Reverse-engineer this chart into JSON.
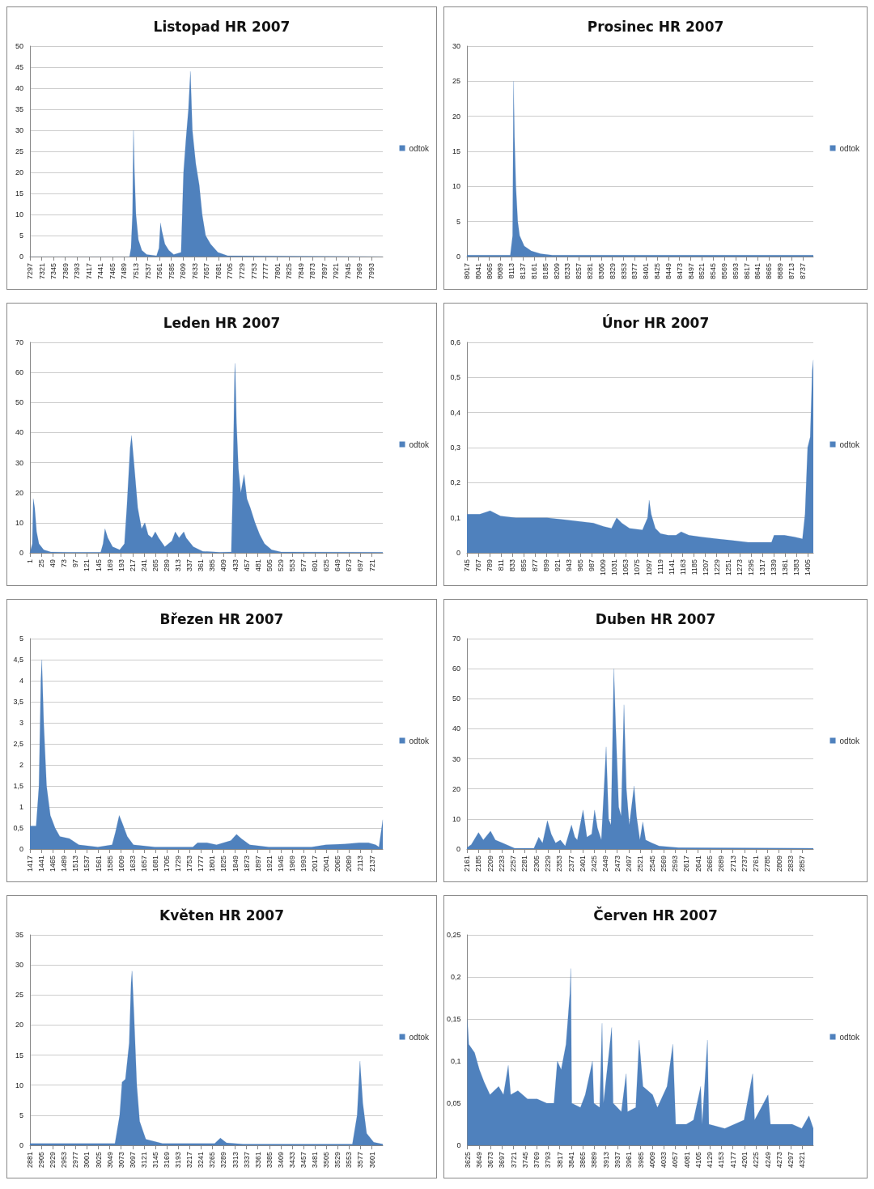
{
  "chart_data": [
    {
      "type": "area",
      "title": "Listopad HR 2007",
      "grid": "y",
      "legend": "right",
      "xlim": [
        7297,
        8016
      ],
      "xticks": [
        7297,
        7321,
        7345,
        7369,
        7393,
        7417,
        7441,
        7465,
        7489,
        7513,
        7537,
        7561,
        7585,
        7609,
        7633,
        7657,
        7681,
        7705,
        7729,
        7753,
        7777,
        7801,
        7825,
        7849,
        7873,
        7897,
        7921,
        7945,
        7969,
        7993
      ],
      "ylim": [
        0,
        50
      ],
      "yticks": [
        0,
        5,
        10,
        15,
        20,
        25,
        30,
        35,
        40,
        45,
        50
      ],
      "series": [
        {
          "name": "odtok",
          "color": "#4f81bd",
          "x": [
            7297,
            7500,
            7503,
            7506,
            7508,
            7510,
            7513,
            7518,
            7525,
            7535,
            7555,
            7560,
            7563,
            7566,
            7572,
            7580,
            7590,
            7605,
            7610,
            7615,
            7620,
            7624,
            7628,
            7635,
            7642,
            7648,
            7655,
            7665,
            7680,
            7700,
            8016
          ],
          "values": [
            0,
            0,
            2,
            10,
            30,
            20,
            10,
            4,
            1.5,
            0.5,
            0.2,
            2,
            8,
            6,
            3,
            1.5,
            0.5,
            1,
            20,
            28,
            35,
            44,
            30,
            22,
            17,
            10,
            5,
            3,
            1,
            0.2,
            0
          ]
        }
      ]
    },
    {
      "type": "area",
      "title": "Prosinec HR 2007",
      "grid": "y",
      "legend": "right",
      "xlim": [
        8017,
        8760
      ],
      "xticks": [
        8017,
        8041,
        8065,
        8089,
        8113,
        8137,
        8161,
        8185,
        8209,
        8233,
        8257,
        8281,
        8305,
        8329,
        8353,
        8377,
        8401,
        8425,
        8449,
        8473,
        8497,
        8521,
        8545,
        8569,
        8593,
        8617,
        8641,
        8665,
        8689,
        8713,
        8737
      ],
      "ylim": [
        0,
        30
      ],
      "yticks": [
        0,
        5,
        10,
        15,
        20,
        25,
        30
      ],
      "series": [
        {
          "name": "odtok",
          "color": "#4f81bd",
          "x": [
            8017,
            8110,
            8115,
            8117,
            8119,
            8122,
            8126,
            8130,
            8140,
            8155,
            8175,
            8200,
            8760
          ],
          "values": [
            0.2,
            0.2,
            3,
            25,
            17,
            10,
            5,
            3,
            1.5,
            0.8,
            0.4,
            0.2,
            0.2
          ]
        }
      ]
    },
    {
      "type": "area",
      "title": "Leden HR 2007",
      "grid": "y",
      "legend": "right",
      "xlim": [
        1,
        744
      ],
      "xticks": [
        1,
        25,
        49,
        73,
        97,
        121,
        145,
        169,
        193,
        217,
        241,
        265,
        289,
        313,
        337,
        361,
        385,
        409,
        433,
        457,
        481,
        505,
        529,
        553,
        577,
        601,
        625,
        649,
        673,
        697,
        721
      ],
      "ylim": [
        0,
        70
      ],
      "yticks": [
        0,
        10,
        20,
        30,
        40,
        50,
        60,
        70
      ],
      "series": [
        {
          "name": "odtok",
          "color": "#4f81bd",
          "x": [
            1,
            6,
            8,
            11,
            15,
            20,
            30,
            45,
            80,
            150,
            155,
            159,
            165,
            175,
            190,
            200,
            205,
            212,
            215,
            220,
            228,
            236,
            243,
            250,
            258,
            265,
            272,
            285,
            300,
            307,
            315,
            325,
            330,
            345,
            365,
            400,
            425,
            428,
            432,
            433,
            436,
            440,
            445,
            452,
            458,
            465,
            475,
            485,
            495,
            510,
            530,
            744
          ],
          "values": [
            0,
            3,
            18,
            15,
            7,
            3,
            1,
            0.3,
            0.2,
            0.2,
            3,
            8,
            5,
            2,
            1,
            3,
            15,
            35,
            39,
            30,
            15,
            8,
            10,
            6,
            5,
            7,
            5,
            2,
            4,
            7,
            5,
            7,
            5,
            2,
            0.5,
            0.2,
            0.3,
            20,
            60,
            63,
            43,
            28,
            20,
            26,
            18,
            15,
            10,
            6,
            3,
            1,
            0.3,
            0.2
          ]
        }
      ]
    },
    {
      "type": "area",
      "title": "Únor HR 2007",
      "grid": "y",
      "legend": "right",
      "xlim": [
        745,
        1416
      ],
      "xticks": [
        745,
        767,
        789,
        811,
        833,
        855,
        877,
        899,
        921,
        943,
        965,
        987,
        1009,
        1031,
        1053,
        1075,
        1097,
        1119,
        1141,
        1163,
        1185,
        1207,
        1229,
        1251,
        1273,
        1295,
        1317,
        1339,
        1361,
        1383,
        1405
      ],
      "ylim": [
        0,
        0.6
      ],
      "yticks": [
        0,
        {
          "value": 0.1,
          "label": "0,1"
        },
        {
          "value": 0.2,
          "label": "0,2"
        },
        {
          "value": 0.3,
          "label": "0,3"
        },
        {
          "value": 0.4,
          "label": "0,4"
        },
        {
          "value": 0.5,
          "label": "0,5"
        },
        {
          "value": 0.6,
          "label": "0,6"
        }
      ],
      "series": [
        {
          "name": "odtok",
          "color": "#4f81bd",
          "x": [
            745,
            770,
            790,
            810,
            840,
            870,
            900,
            930,
            960,
            990,
            1010,
            1025,
            1035,
            1045,
            1060,
            1085,
            1095,
            1098,
            1102,
            1110,
            1120,
            1135,
            1150,
            1160,
            1175,
            1200,
            1230,
            1260,
            1290,
            1320,
            1335,
            1340,
            1360,
            1380,
            1395,
            1400,
            1405,
            1410,
            1414,
            1416
          ],
          "values": [
            0.11,
            0.11,
            0.12,
            0.105,
            0.1,
            0.1,
            0.1,
            0.095,
            0.09,
            0.085,
            0.075,
            0.07,
            0.1,
            0.085,
            0.07,
            0.065,
            0.1,
            0.15,
            0.11,
            0.07,
            0.055,
            0.05,
            0.05,
            0.06,
            0.05,
            0.045,
            0.04,
            0.035,
            0.03,
            0.03,
            0.03,
            0.05,
            0.05,
            0.045,
            0.04,
            0.11,
            0.3,
            0.33,
            0.52,
            0.55
          ]
        }
      ]
    },
    {
      "type": "area",
      "title": "Březen HR 2007",
      "grid": "y",
      "legend": "right",
      "xlim": [
        1417,
        2160
      ],
      "xticks": [
        1417,
        1441,
        1465,
        1489,
        1513,
        1537,
        1561,
        1585,
        1609,
        1633,
        1657,
        1681,
        1705,
        1729,
        1753,
        1777,
        1801,
        1825,
        1849,
        1873,
        1897,
        1921,
        1945,
        1969,
        1993,
        2017,
        2041,
        2065,
        2089,
        2113,
        2137
      ],
      "ylim": [
        0,
        5
      ],
      "yticks": [
        0,
        {
          "value": 0.5,
          "label": "0,5"
        },
        1,
        {
          "value": 1.5,
          "label": "1,5"
        },
        2,
        {
          "value": 2.5,
          "label": "2,5"
        },
        3,
        {
          "value": 3.5,
          "label": "3,5"
        },
        4,
        {
          "value": 4.5,
          "label": "4,5"
        },
        5
      ],
      "series": [
        {
          "name": "odtok",
          "color": "#4f81bd",
          "x": [
            1417,
            1430,
            1436,
            1440,
            1442,
            1446,
            1452,
            1460,
            1470,
            1480,
            1500,
            1520,
            1560,
            1590,
            1597,
            1605,
            1612,
            1622,
            1635,
            1680,
            1760,
            1770,
            1790,
            1810,
            1840,
            1852,
            1862,
            1880,
            1920,
            2010,
            2040,
            2080,
            2110,
            2130,
            2145,
            2152,
            2160
          ],
          "values": [
            0.55,
            0.55,
            1.5,
            4,
            4.5,
            3,
            1.5,
            0.8,
            0.5,
            0.3,
            0.25,
            0.1,
            0.05,
            0.1,
            0.4,
            0.8,
            0.6,
            0.3,
            0.1,
            0.05,
            0.05,
            0.15,
            0.15,
            0.1,
            0.2,
            0.35,
            0.25,
            0.1,
            0.05,
            0.05,
            0.1,
            0.12,
            0.15,
            0.15,
            0.1,
            0.05,
            0.7
          ]
        }
      ]
    },
    {
      "type": "area",
      "title": "Duben HR 2007",
      "grid": "y",
      "legend": "right",
      "xlim": [
        2161,
        2880
      ],
      "xticks": [
        2161,
        2185,
        2209,
        2233,
        2257,
        2281,
        2305,
        2329,
        2353,
        2377,
        2401,
        2425,
        2449,
        2473,
        2497,
        2521,
        2545,
        2569,
        2593,
        2617,
        2641,
        2665,
        2689,
        2713,
        2737,
        2761,
        2785,
        2809,
        2833,
        2857
      ],
      "ylim": [
        0,
        70
      ],
      "yticks": [
        0,
        10,
        20,
        30,
        40,
        50,
        60,
        70
      ],
      "series": [
        {
          "name": "odtok",
          "color": "#4f81bd",
          "x": [
            2161,
            2170,
            2185,
            2195,
            2210,
            2220,
            2235,
            2260,
            2300,
            2310,
            2318,
            2328,
            2336,
            2345,
            2355,
            2365,
            2378,
            2385,
            2390,
            2402,
            2410,
            2420,
            2426,
            2432,
            2440,
            2450,
            2455,
            2460,
            2466,
            2470,
            2476,
            2481,
            2487,
            2492,
            2498,
            2508,
            2513,
            2520,
            2526,
            2532,
            2545,
            2560,
            2600,
            2880
          ],
          "values": [
            0.5,
            1.5,
            5.5,
            3,
            6,
            3,
            2,
            0.3,
            0.3,
            4,
            2,
            9.5,
            5,
            2,
            3,
            1,
            8,
            4,
            3,
            13,
            4,
            5,
            13,
            7,
            3,
            34,
            10,
            8,
            60,
            40,
            14,
            11,
            48,
            20,
            8,
            21,
            11,
            3,
            9,
            3,
            2,
            1,
            0.5,
            0.3
          ]
        }
      ]
    },
    {
      "type": "area",
      "title": "Květen HR 2007",
      "grid": "y",
      "legend": "right",
      "xlim": [
        2881,
        3624
      ],
      "xticks": [
        2881,
        2905,
        2929,
        2953,
        2977,
        3001,
        3025,
        3049,
        3073,
        3097,
        3121,
        3145,
        3169,
        3193,
        3217,
        3241,
        3265,
        3289,
        3313,
        3337,
        3361,
        3385,
        3409,
        3433,
        3457,
        3481,
        3505,
        3529,
        3553,
        3577,
        3601
      ],
      "ylim": [
        0,
        35
      ],
      "yticks": [
        0,
        5,
        10,
        15,
        20,
        25,
        30,
        35
      ],
      "series": [
        {
          "name": "odtok",
          "color": "#4f81bd",
          "x": [
            2881,
            3060,
            3070,
            3075,
            3082,
            3090,
            3094,
            3096,
            3100,
            3106,
            3112,
            3125,
            3160,
            3270,
            3282,
            3295,
            3330,
            3560,
            3570,
            3576,
            3582,
            3590,
            3605,
            3624
          ],
          "values": [
            0.3,
            0.3,
            5,
            10.5,
            11,
            17,
            27,
            29,
            22,
            10,
            4,
            1,
            0.3,
            0.3,
            1.2,
            0.4,
            0.2,
            0.2,
            5,
            14,
            7,
            2,
            0.5,
            0.2
          ]
        }
      ]
    },
    {
      "type": "area",
      "title": "Červen HR 2007",
      "grid": "y",
      "legend": "right",
      "xlim": [
        3625,
        4344
      ],
      "xticks": [
        3625,
        3649,
        3673,
        3697,
        3721,
        3745,
        3769,
        3793,
        3817,
        3841,
        3865,
        3889,
        3913,
        3937,
        3961,
        3985,
        4009,
        4033,
        4057,
        4081,
        4105,
        4129,
        4153,
        4177,
        4201,
        4225,
        4249,
        4273,
        4297,
        4321
      ],
      "ylim": [
        0,
        0.25
      ],
      "yticks": [
        0,
        {
          "value": 0.05,
          "label": "0,05"
        },
        {
          "value": 0.1,
          "label": "0,1"
        },
        {
          "value": 0.15,
          "label": "0,15"
        },
        {
          "value": 0.2,
          "label": "0,2"
        },
        {
          "value": 0.25,
          "label": "0,25"
        }
      ],
      "series": [
        {
          "name": "odtok",
          "color": "#4f81bd",
          "x": [
            3625,
            3628,
            3640,
            3650,
            3660,
            3672,
            3690,
            3700,
            3710,
            3715,
            3730,
            3750,
            3770,
            3790,
            3805,
            3812,
            3820,
            3830,
            3838,
            3840,
            3842,
            3860,
            3870,
            3885,
            3888,
            3900,
            3905,
            3908,
            3925,
            3928,
            3945,
            3955,
            3958,
            3975,
            3982,
            3990,
            4010,
            4020,
            4040,
            4052,
            4058,
            4080,
            4095,
            4110,
            4113,
            4124,
            4127,
            4160,
            4200,
            4218,
            4222,
            4250,
            4255,
            4300,
            4320,
            4335,
            4344
          ],
          "values": [
            0.15,
            0.12,
            0.11,
            0.09,
            0.075,
            0.06,
            0.07,
            0.06,
            0.095,
            0.06,
            0.065,
            0.055,
            0.055,
            0.05,
            0.05,
            0.1,
            0.09,
            0.12,
            0.18,
            0.21,
            0.05,
            0.045,
            0.06,
            0.1,
            0.05,
            0.045,
            0.145,
            0.05,
            0.14,
            0.05,
            0.04,
            0.085,
            0.04,
            0.045,
            0.125,
            0.07,
            0.06,
            0.045,
            0.07,
            0.12,
            0.025,
            0.025,
            0.03,
            0.07,
            0.025,
            0.125,
            0.025,
            0.02,
            0.03,
            0.085,
            0.03,
            0.06,
            0.025,
            0.025,
            0.02,
            0.035,
            0.02
          ]
        }
      ]
    }
  ]
}
